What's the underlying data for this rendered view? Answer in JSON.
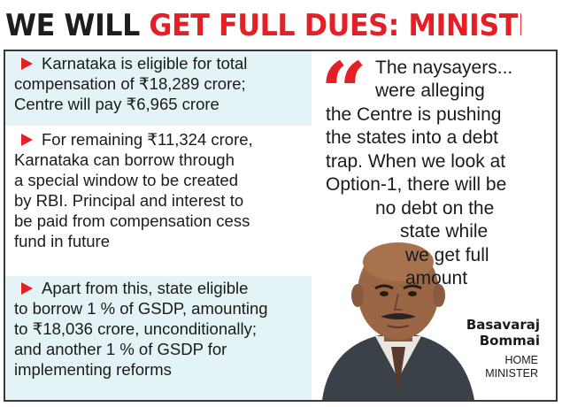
{
  "headline": {
    "part1": "WE WILL ",
    "part2": "GET FULL DUES: MINISTER"
  },
  "bullets": [
    {
      "icon": "arrow-bullet-icon",
      "lines": [
        "Karnataka is eligible for total",
        "compensation of ₹18,289 crore;",
        "Centre will pay ₹6,965 crore"
      ]
    },
    {
      "icon": "arrow-bullet-icon",
      "lines": [
        "For remaining ₹11,324 crore,",
        "Karnataka can borrow through",
        "a special window to be created",
        "by RBI. Principal and interest to",
        "be paid from compensation cess",
        "fund in future"
      ]
    },
    {
      "icon": "arrow-bullet-icon",
      "lines": [
        "Apart from this, state eligible",
        "to borrow 1 % of GSDP, amounting",
        "to ₹18,036 crore, unconditionally;",
        "and another 1 % of GSDP for",
        "implementing reforms"
      ]
    }
  ],
  "quote": {
    "mark": "“",
    "lines": [
      "The naysayers...",
      "were alleging",
      "the Centre is pushing",
      "the states into a debt",
      "trap. When we look at",
      "Option-1, there will be",
      "no debt on the",
      "state while",
      "we get full",
      "amount"
    ]
  },
  "byline": {
    "name_line1": "Basavaraj",
    "name_line2": "Bommai",
    "role_line1": "HOME",
    "role_line2": "MINISTER"
  },
  "colors": {
    "accent_red": "#e41f26",
    "panel_blue": "#e3f3f6",
    "text_dark": "#1b1b1b"
  }
}
